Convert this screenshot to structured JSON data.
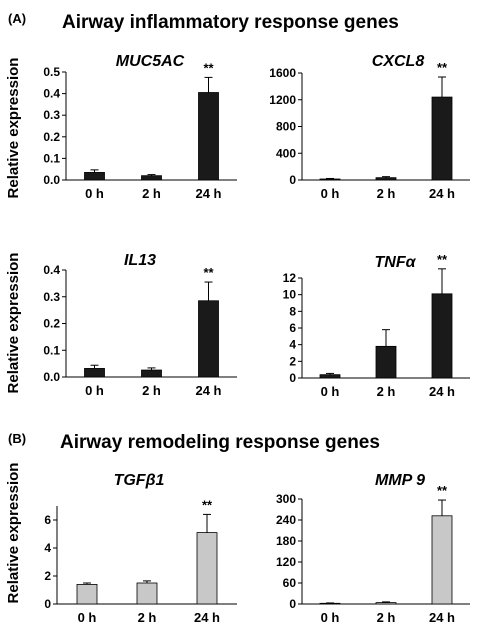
{
  "panels": [
    {
      "label": "(A)",
      "title": "Airway inflammatory response genes"
    },
    {
      "label": "(B)",
      "title": "Airway remodeling response genes"
    }
  ],
  "ylabel": "Relative expression",
  "colors": {
    "panel_a_bar": "#1a1a1a",
    "panel_b_bar": "#c8c8c8",
    "bar_stroke": "#000000"
  },
  "chart_data": [
    {
      "type": "bar",
      "title": "MUC5AC",
      "categories": [
        "0 h",
        "2 h",
        "24 h"
      ],
      "values": [
        0.035,
        0.02,
        0.405
      ],
      "errors": [
        0.012,
        0.005,
        0.07
      ],
      "ylim": [
        0,
        0.5
      ],
      "yticks": [
        "0.0",
        "0.1",
        "0.2",
        "0.3",
        "0.4",
        "0.5"
      ],
      "significance": [
        "",
        "",
        "**"
      ],
      "ylabel": "Relative expression"
    },
    {
      "type": "bar",
      "title": "CXCL8",
      "categories": [
        "0 h",
        "2 h",
        "24 h"
      ],
      "values": [
        15,
        35,
        1240
      ],
      "errors": [
        8,
        15,
        300
      ],
      "ylim": [
        0,
        1600
      ],
      "yticks": [
        "0",
        "400",
        "800",
        "1200",
        "1600"
      ],
      "significance": [
        "",
        "",
        "**"
      ],
      "ylabel": ""
    },
    {
      "type": "bar",
      "title": "IL13",
      "categories": [
        "0 h",
        "2 h",
        "24 h"
      ],
      "values": [
        0.032,
        0.026,
        0.285
      ],
      "errors": [
        0.012,
        0.008,
        0.07
      ],
      "ylim": [
        0,
        0.4
      ],
      "yticks": [
        "0.0",
        "0.1",
        "0.2",
        "0.3",
        "0.4"
      ],
      "significance": [
        "",
        "",
        "**"
      ],
      "ylabel": "Relative expression"
    },
    {
      "type": "bar",
      "title": "TNFα",
      "categories": [
        "0 h",
        "2 h",
        "24 h"
      ],
      "values": [
        0.4,
        3.8,
        10.1
      ],
      "errors": [
        0.15,
        2.0,
        3.0
      ],
      "ylim": [
        0,
        12
      ],
      "yticks": [
        "0",
        "2",
        "4",
        "6",
        "8",
        "10",
        "12"
      ],
      "significance": [
        "",
        "",
        "**"
      ],
      "ylabel": ""
    },
    {
      "type": "bar",
      "title": "TGFβ1",
      "categories": [
        "0 h",
        "2 h",
        "24 h"
      ],
      "values": [
        1.4,
        1.5,
        5.1
      ],
      "errors": [
        0.1,
        0.15,
        1.3
      ],
      "ylim": [
        0,
        7
      ],
      "yticks": [
        "0",
        "2",
        "4",
        "6"
      ],
      "significance": [
        "",
        "",
        "**"
      ],
      "ylabel": "Relative expression"
    },
    {
      "type": "bar",
      "title": "MMP 9",
      "categories": [
        "0 h",
        "2 h",
        "24 h"
      ],
      "values": [
        2,
        4,
        252
      ],
      "errors": [
        1,
        2,
        45
      ],
      "ylim": [
        0,
        300
      ],
      "yticks": [
        "0",
        "60",
        "120",
        "180",
        "240",
        "300"
      ],
      "significance": [
        "",
        "",
        "**"
      ],
      "ylabel": ""
    }
  ]
}
